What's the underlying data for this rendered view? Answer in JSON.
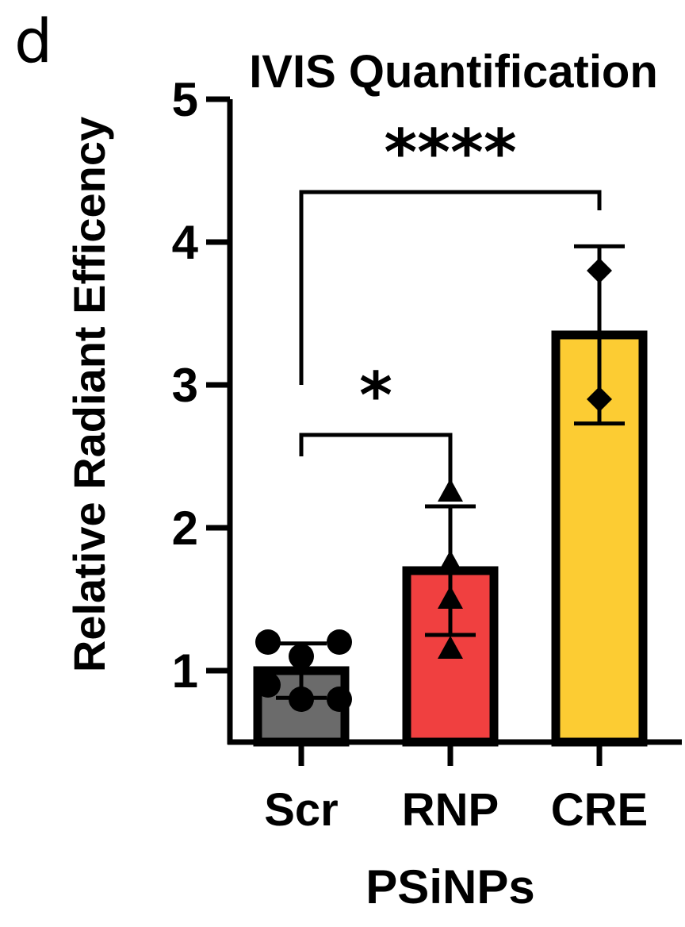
{
  "panel_letter": "d",
  "chart_data": {
    "type": "bar",
    "title": "IVIS Quantification",
    "xlabel": "PSiNPs",
    "ylabel": "Relative Radiant Efficency",
    "categories": [
      "Scr",
      "RNP",
      "CRE"
    ],
    "values": [
      1.0,
      1.7,
      3.35
    ],
    "error": [
      0.19,
      0.45,
      0.62
    ],
    "bar_colors": [
      "#6b6b6b",
      "#f04040",
      "#fccc33"
    ],
    "point_markers": [
      "circle",
      "triangle",
      "diamond"
    ],
    "points": [
      [
        1.2,
        1.2,
        1.1,
        0.9,
        0.8,
        0.8
      ],
      [
        2.25,
        1.75,
        1.5,
        1.15
      ],
      [
        3.8,
        2.9
      ]
    ],
    "ylim": [
      0.5,
      5
    ],
    "yticks": [
      1,
      2,
      3,
      4,
      5
    ],
    "grid": false,
    "legend": "none",
    "significance": [
      {
        "from": 0,
        "to": 1,
        "label": "*",
        "y": 2.65
      },
      {
        "from": 0,
        "to": 2,
        "label": "****",
        "y": 4.35
      }
    ]
  }
}
